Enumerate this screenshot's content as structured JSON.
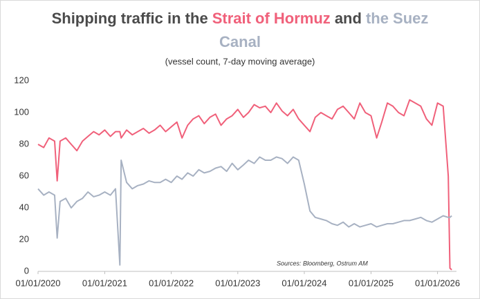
{
  "chart_data": {
    "type": "line",
    "title": [
      "Shipping traffic in the",
      "Strait of Hormuz",
      "and",
      "the Suez",
      "Canal"
    ],
    "title_colors": [
      "#4a4a4a",
      "#f0607a",
      "#4a4a4a",
      "#a7b1c2",
      "#a7b1c2"
    ],
    "subtitle": "(vessel count, 7-day moving average)",
    "annotation": "Sources: Bloomberg, Ostrum AM",
    "x": [
      "01/01/2020",
      "01/02/2020",
      "01/03/2020",
      "01/04/2020",
      "15/04/2020",
      "01/05/2020",
      "01/06/2020",
      "01/07/2020",
      "01/08/2020",
      "01/09/2020",
      "01/10/2020",
      "01/11/2020",
      "01/12/2020",
      "01/01/2021",
      "01/02/2021",
      "01/03/2021",
      "25/03/2021",
      "01/04/2021",
      "01/05/2021",
      "01/06/2021",
      "01/07/2021",
      "01/08/2021",
      "01/09/2021",
      "01/10/2021",
      "01/11/2021",
      "01/12/2021",
      "01/01/2022",
      "01/02/2022",
      "01/03/2022",
      "01/04/2022",
      "01/05/2022",
      "01/06/2022",
      "01/07/2022",
      "01/08/2022",
      "01/09/2022",
      "01/10/2022",
      "01/11/2022",
      "01/12/2022",
      "01/01/2023",
      "01/02/2023",
      "01/03/2023",
      "01/04/2023",
      "01/05/2023",
      "01/06/2023",
      "01/07/2023",
      "01/08/2023",
      "01/09/2023",
      "01/10/2023",
      "01/11/2023",
      "01/12/2023",
      "01/01/2024",
      "01/02/2024",
      "01/03/2024",
      "01/04/2024",
      "01/05/2024",
      "01/06/2024",
      "01/07/2024",
      "01/08/2024",
      "01/09/2024",
      "01/10/2024",
      "01/11/2024",
      "01/12/2024",
      "01/01/2025",
      "01/02/2025",
      "01/03/2025",
      "01/04/2025",
      "01/05/2025",
      "01/06/2025",
      "01/07/2025",
      "01/08/2025",
      "01/09/2025",
      "01/10/2025",
      "01/11/2025",
      "01/12/2025",
      "01/01/2026",
      "01/02/2026",
      "01/03/2026",
      "10/03/2026",
      "20/03/2026"
    ],
    "series": [
      {
        "color": "#f0607a",
        "values": [
          80,
          78,
          84,
          82,
          57,
          82,
          84,
          80,
          76,
          82,
          85,
          88,
          86,
          89,
          85,
          88,
          88,
          84,
          89,
          86,
          88,
          90,
          87,
          89,
          92,
          88,
          91,
          94,
          84,
          92,
          96,
          98,
          93,
          97,
          99,
          92,
          96,
          98,
          102,
          97,
          100,
          105,
          103,
          104,
          100,
          106,
          101,
          98,
          102,
          96,
          92,
          88,
          97,
          100,
          98,
          96,
          102,
          104,
          100,
          96,
          106,
          100,
          98,
          84,
          94,
          106,
          104,
          100,
          98,
          108,
          106,
          104,
          96,
          92,
          106,
          104,
          60,
          2,
          1
        ]
      },
      {
        "color": "#a7b1c2",
        "values": [
          52,
          48,
          50,
          48,
          21,
          44,
          46,
          40,
          44,
          46,
          50,
          47,
          48,
          50,
          48,
          52,
          4,
          70,
          56,
          52,
          54,
          55,
          57,
          56,
          56,
          58,
          56,
          60,
          58,
          62,
          60,
          64,
          62,
          63,
          65,
          66,
          63,
          68,
          64,
          67,
          70,
          68,
          72,
          70,
          70,
          72,
          71,
          68,
          72,
          70,
          55,
          38,
          34,
          33,
          32,
          30,
          29,
          31,
          28,
          30,
          28,
          29,
          30,
          28,
          29,
          30,
          30,
          31,
          32,
          32,
          33,
          34,
          32,
          31,
          33,
          35,
          34,
          34,
          35
        ]
      }
    ],
    "xlim": [
      "01/01/2020",
      "15/04/2026"
    ],
    "xticks": [
      "01/01/2020",
      "01/01/2021",
      "01/01/2022",
      "01/01/2023",
      "01/01/2024",
      "01/01/2025",
      "01/01/2026"
    ],
    "ylim": [
      0,
      120
    ],
    "yticks": [
      0,
      20,
      40,
      60,
      80,
      100,
      120
    ],
    "grid": false
  }
}
